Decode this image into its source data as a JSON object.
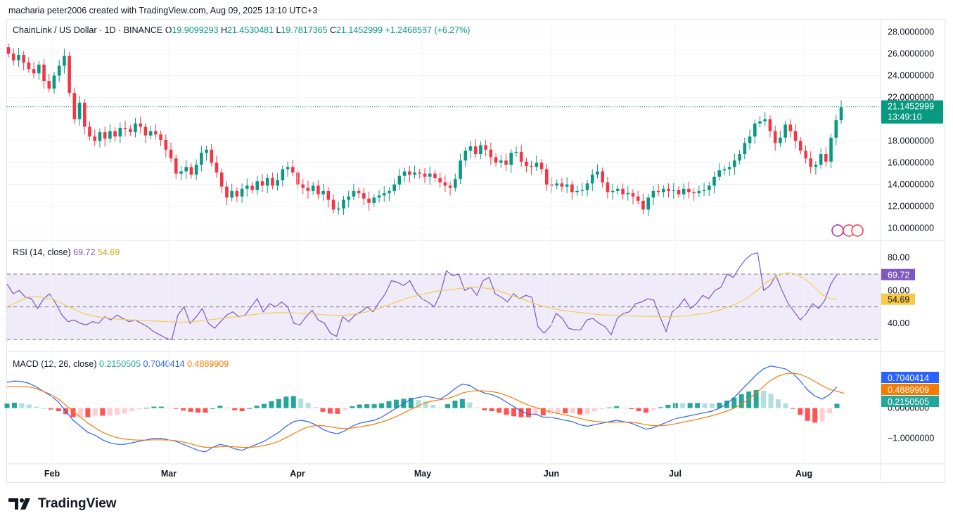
{
  "caption": "macharia peter2006 created with TradingView.com, Aug 09, 2025 13:10 UTC+3",
  "brand": "TradingView",
  "chart_data": [
    {
      "type": "candlestick",
      "title": "ChainLink / US Dollar · 1D · BINANCE",
      "ohlc_label": {
        "o_key": "O",
        "o": "19.9099293",
        "h_key": "H",
        "h": "21.4530481",
        "l_key": "L",
        "l": "19.7817365",
        "c_key": "C",
        "c": "21.1452999",
        "change": "+1.2468587 (+6.27%)"
      },
      "price_tag": "21.1452999",
      "countdown": "13:49:10",
      "ylim": [
        9.0,
        29.0
      ],
      "yticks": [
        "28.0000000",
        "26.0000000",
        "24.0000000",
        "22.0000000",
        "18.0000000",
        "16.0000000",
        "14.0000000",
        "12.0000000",
        "10.0000000"
      ],
      "ytick_values": [
        28,
        26,
        24,
        22,
        18,
        16,
        14,
        12,
        10
      ],
      "x_months": [
        "Feb",
        "Mar",
        "Apr",
        "May",
        "Jun",
        "Jul",
        "Aug"
      ],
      "closes": [
        26.0,
        25.4,
        25.9,
        25.2,
        24.6,
        24.2,
        25.0,
        23.5,
        22.8,
        24.0,
        24.9,
        25.8,
        22.4,
        20.0,
        21.5,
        19.3,
        18.4,
        18.0,
        18.8,
        18.2,
        18.9,
        18.4,
        19.2,
        19.1,
        18.8,
        19.6,
        19.3,
        18.5,
        18.9,
        18.6,
        18.1,
        17.2,
        16.4,
        15.0,
        15.2,
        15.6,
        14.9,
        15.8,
        16.9,
        17.2,
        16.0,
        15.1,
        13.8,
        12.8,
        13.4,
        12.9,
        13.6,
        13.9,
        13.5,
        14.3,
        13.9,
        14.6,
        13.9,
        14.4,
        15.4,
        15.6,
        15.1,
        14.0,
        13.7,
        13.4,
        13.9,
        13.1,
        13.4,
        12.6,
        11.7,
        11.8,
        12.6,
        12.9,
        13.4,
        13.2,
        12.7,
        12.3,
        12.8,
        13.0,
        13.2,
        13.4,
        14.0,
        14.8,
        15.2,
        14.9,
        15.1,
        15.0,
        14.7,
        15.0,
        14.6,
        14.2,
        13.9,
        13.7,
        14.5,
        16.2,
        17.1,
        17.5,
        16.8,
        17.6,
        17.2,
        16.5,
        16.0,
        16.2,
        15.8,
        16.9,
        17.0,
        16.1,
        15.7,
        15.6,
        16.0,
        15.4,
        14.0,
        13.9,
        14.1,
        13.8,
        14.0,
        13.3,
        13.4,
        13.5,
        14.1,
        14.9,
        15.2,
        14.2,
        13.3,
        13.4,
        13.6,
        13.1,
        13.2,
        12.9,
        12.5,
        11.7,
        12.8,
        13.4,
        13.3,
        13.6,
        13.4,
        13.5,
        13.1,
        13.6,
        13.3,
        13.2,
        13.4,
        13.5,
        13.9,
        14.7,
        15.3,
        15.4,
        15.6,
        16.2,
        16.8,
        17.8,
        18.4,
        19.6,
        19.8,
        20.0,
        18.9,
        17.8,
        18.3,
        19.5,
        18.9,
        18.0,
        17.1,
        16.4,
        15.6,
        15.8,
        16.8,
        16.1,
        18.3,
        19.9,
        21.1
      ],
      "opens": [
        26.6,
        26.0,
        25.4,
        25.9,
        25.2,
        24.6,
        24.2,
        25.0,
        23.5,
        22.8,
        24.0,
        24.9,
        25.8,
        22.4,
        20.0,
        21.5,
        19.3,
        18.4,
        18.0,
        18.8,
        18.2,
        18.9,
        18.4,
        19.2,
        19.1,
        18.8,
        19.6,
        19.3,
        18.5,
        18.9,
        18.6,
        18.1,
        17.2,
        16.4,
        15.0,
        15.2,
        15.6,
        14.9,
        15.8,
        16.9,
        17.2,
        16.0,
        15.1,
        13.8,
        12.8,
        13.4,
        12.9,
        13.6,
        13.9,
        13.5,
        14.3,
        13.9,
        14.6,
        13.9,
        14.4,
        15.4,
        15.6,
        15.1,
        14.0,
        13.7,
        13.4,
        13.9,
        13.1,
        13.4,
        12.6,
        11.7,
        11.8,
        12.6,
        12.9,
        13.4,
        13.2,
        12.7,
        12.3,
        12.8,
        13.0,
        13.2,
        13.4,
        14.0,
        14.8,
        15.2,
        14.9,
        15.1,
        15.0,
        14.7,
        15.0,
        14.6,
        14.2,
        13.9,
        13.7,
        14.5,
        16.2,
        17.1,
        17.5,
        16.8,
        17.6,
        17.2,
        16.5,
        16.0,
        16.2,
        15.8,
        16.9,
        17.0,
        16.1,
        15.7,
        15.6,
        16.0,
        15.4,
        14.0,
        13.9,
        14.1,
        13.8,
        14.0,
        13.3,
        13.4,
        13.5,
        14.1,
        14.9,
        15.2,
        14.2,
        13.3,
        13.4,
        13.6,
        13.1,
        13.2,
        12.9,
        12.5,
        11.7,
        12.8,
        13.4,
        13.3,
        13.6,
        13.4,
        13.5,
        13.1,
        13.6,
        13.3,
        13.2,
        13.4,
        13.5,
        13.9,
        14.7,
        15.3,
        15.4,
        15.6,
        16.2,
        16.8,
        17.8,
        18.4,
        19.6,
        19.8,
        20.0,
        18.9,
        17.8,
        18.3,
        19.5,
        18.9,
        18.0,
        17.1,
        16.4,
        15.6,
        15.8,
        16.8,
        16.1,
        18.3,
        19.9
      ]
    },
    {
      "type": "line",
      "title": "RSI (14, close)",
      "values_label": [
        "69.72",
        "54.69"
      ],
      "ylim": [
        25,
        85
      ],
      "yticks": [
        "80.00",
        "60.00",
        "40.00"
      ],
      "ytick_values": [
        80,
        60,
        40
      ],
      "bands": [
        70,
        50,
        30
      ],
      "series": [
        {
          "color": "#7e57c2",
          "values": [
            64,
            58,
            60,
            56,
            55,
            49,
            55,
            58,
            52,
            45,
            41,
            42,
            40,
            39,
            41,
            40,
            44,
            42,
            45,
            43,
            41,
            42,
            40,
            38,
            35,
            33,
            31,
            30,
            45,
            50,
            40,
            44,
            49,
            40,
            37,
            41,
            45,
            47,
            44,
            45,
            50,
            55,
            47,
            52,
            50,
            53,
            50,
            40,
            39,
            44,
            48,
            42,
            40,
            34,
            32,
            44,
            41,
            45,
            47,
            50,
            47,
            53,
            58,
            66,
            65,
            63,
            66,
            59,
            55,
            53,
            50,
            58,
            72,
            69,
            70,
            60,
            62,
            57,
            66,
            68,
            58,
            56,
            53,
            58,
            55,
            57,
            56,
            38,
            34,
            38,
            46,
            43,
            37,
            36,
            36,
            42,
            43,
            40,
            38,
            33,
            43,
            46,
            47,
            52,
            53,
            55,
            54,
            44,
            35,
            47,
            50,
            55,
            49,
            52,
            57,
            55,
            60,
            62,
            70,
            68,
            74,
            79,
            82,
            83,
            60,
            63,
            69,
            60,
            52,
            47,
            42,
            46,
            52,
            49,
            54,
            64,
            69.72
          ]
        },
        {
          "color": "#f7c948",
          "values": [
            50,
            52,
            54,
            56,
            56.5,
            56,
            55,
            54,
            52,
            50,
            48,
            46,
            45,
            44,
            43.5,
            43,
            42.5,
            42.3,
            42,
            41.8,
            41.6,
            41.4,
            41.2,
            41,
            40.8,
            40.7,
            40.8,
            41,
            41.5,
            42,
            42.5,
            43,
            43.5,
            44,
            44.5,
            45,
            45.5,
            46,
            46.3,
            46.5,
            46.5,
            46.4,
            46.2,
            46,
            45.8,
            45.5,
            45.2,
            45,
            44.8,
            45,
            45.5,
            46,
            47,
            48,
            49.5,
            51,
            52.5,
            54,
            55.5,
            56.5,
            57.5,
            58.5,
            59.5,
            60,
            60.5,
            61,
            61.5,
            61.8,
            62,
            61.5,
            61,
            60,
            58.5,
            57,
            55.5,
            54,
            52.5,
            51,
            50,
            49,
            48,
            47.5,
            47,
            46.5,
            46,
            45.5,
            45.2,
            45,
            44.8,
            44.6,
            44.5,
            44.4,
            44.3,
            44.2,
            44.1,
            44,
            44,
            44.2,
            44.5,
            45,
            45.5,
            46,
            47,
            48,
            49.5,
            51,
            53,
            55.5,
            58.5,
            62,
            65.5,
            68,
            70,
            71,
            70,
            68,
            65,
            61,
            57,
            55,
            54.69
          ]
        }
      ]
    },
    {
      "type": "bar+line",
      "title": "MACD (12, 26, close)",
      "values_label": [
        "0.2150505",
        "0.7040414",
        "0.4889909"
      ],
      "ylim": [
        -1.8,
        1.6
      ],
      "yticks": [
        "0.0000000",
        "−1.0000000"
      ],
      "ytick_values": [
        0,
        -1
      ],
      "tags": [
        "0.7040414",
        "0.4889909",
        "0.2150505"
      ],
      "series": [
        {
          "name": "MACD",
          "color": "#2962ff",
          "values": [
            0.85,
            0.9,
            0.88,
            0.82,
            0.7,
            0.55,
            0.4,
            0.2,
            -0.1,
            -0.4,
            -0.6,
            -0.8,
            -0.9,
            -1.05,
            -1.15,
            -1.2,
            -1.2,
            -1.15,
            -1.1,
            -1.05,
            -1.0,
            -1.0,
            -1.05,
            -1.1,
            -1.2,
            -1.3,
            -1.4,
            -1.45,
            -1.3,
            -1.2,
            -1.25,
            -1.35,
            -1.4,
            -1.3,
            -1.2,
            -1.1,
            -0.95,
            -0.8,
            -0.6,
            -0.45,
            -0.4,
            -0.45,
            -0.55,
            -0.7,
            -0.8,
            -0.85,
            -0.75,
            -0.6,
            -0.5,
            -0.45,
            -0.4,
            -0.3,
            -0.15,
            0.0,
            0.15,
            0.3,
            0.35,
            0.4,
            0.35,
            0.3,
            0.45,
            0.65,
            0.8,
            0.75,
            0.6,
            0.5,
            0.45,
            0.35,
            0.2,
            0.05,
            -0.1,
            -0.2,
            -0.2,
            -0.3,
            -0.3,
            -0.35,
            -0.4,
            -0.45,
            -0.55,
            -0.6,
            -0.55,
            -0.5,
            -0.45,
            -0.4,
            -0.45,
            -0.5,
            -0.6,
            -0.7,
            -0.65,
            -0.55,
            -0.45,
            -0.35,
            -0.3,
            -0.25,
            -0.2,
            -0.15,
            -0.1,
            0.0,
            0.15,
            0.35,
            0.6,
            0.85,
            1.1,
            1.3,
            1.4,
            1.35,
            1.3,
            1.15,
            0.9,
            0.6,
            0.4,
            0.3,
            0.45,
            0.7040414
          ]
        },
        {
          "name": "Signal",
          "color": "#f57c00",
          "values": [
            0.7,
            0.72,
            0.72,
            0.7,
            0.65,
            0.55,
            0.45,
            0.3,
            0.1,
            -0.1,
            -0.3,
            -0.5,
            -0.65,
            -0.8,
            -0.9,
            -0.98,
            -1.02,
            -1.05,
            -1.06,
            -1.06,
            -1.05,
            -1.05,
            -1.06,
            -1.08,
            -1.12,
            -1.18,
            -1.25,
            -1.3,
            -1.3,
            -1.28,
            -1.27,
            -1.28,
            -1.3,
            -1.3,
            -1.28,
            -1.24,
            -1.18,
            -1.1,
            -0.98,
            -0.85,
            -0.72,
            -0.62,
            -0.58,
            -0.58,
            -0.62,
            -0.66,
            -0.68,
            -0.66,
            -0.62,
            -0.58,
            -0.53,
            -0.46,
            -0.38,
            -0.28,
            -0.16,
            -0.04,
            0.08,
            0.18,
            0.24,
            0.28,
            0.32,
            0.4,
            0.5,
            0.56,
            0.58,
            0.57,
            0.55,
            0.5,
            0.42,
            0.32,
            0.2,
            0.1,
            0.02,
            -0.06,
            -0.12,
            -0.18,
            -0.23,
            -0.28,
            -0.34,
            -0.4,
            -0.44,
            -0.46,
            -0.47,
            -0.46,
            -0.46,
            -0.47,
            -0.5,
            -0.55,
            -0.58,
            -0.58,
            -0.56,
            -0.52,
            -0.47,
            -0.42,
            -0.37,
            -0.31,
            -0.25,
            -0.18,
            -0.1,
            0.0,
            0.14,
            0.3,
            0.5,
            0.72,
            0.92,
            1.06,
            1.14,
            1.16,
            1.12,
            1.02,
            0.88,
            0.74,
            0.62,
            0.56,
            0.4889909
          ]
        }
      ]
    }
  ]
}
